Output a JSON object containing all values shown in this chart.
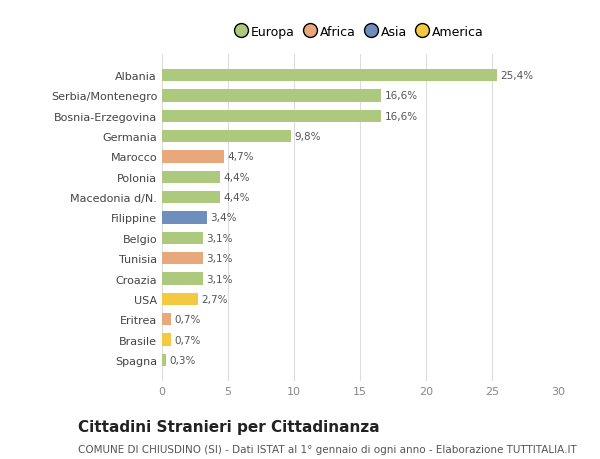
{
  "countries": [
    "Albania",
    "Serbia/Montenegro",
    "Bosnia-Erzegovina",
    "Germania",
    "Marocco",
    "Polonia",
    "Macedonia d/N.",
    "Filippine",
    "Belgio",
    "Tunisia",
    "Croazia",
    "USA",
    "Eritrea",
    "Brasile",
    "Spagna"
  ],
  "values": [
    25.4,
    16.6,
    16.6,
    9.8,
    4.7,
    4.4,
    4.4,
    3.4,
    3.1,
    3.1,
    3.1,
    2.7,
    0.7,
    0.7,
    0.3
  ],
  "labels": [
    "25,4%",
    "16,6%",
    "16,6%",
    "9,8%",
    "4,7%",
    "4,4%",
    "4,4%",
    "3,4%",
    "3,1%",
    "3,1%",
    "3,1%",
    "2,7%",
    "0,7%",
    "0,7%",
    "0,3%"
  ],
  "colors": [
    "#adc97e",
    "#adc97e",
    "#adc97e",
    "#adc97e",
    "#e8a87c",
    "#adc97e",
    "#adc97e",
    "#6e8fbe",
    "#adc97e",
    "#e8a87c",
    "#adc97e",
    "#f5c842",
    "#e8a87c",
    "#f5c842",
    "#adc97e"
  ],
  "legend_labels": [
    "Europa",
    "Africa",
    "Asia",
    "America"
  ],
  "legend_colors": [
    "#adc97e",
    "#e8a87c",
    "#6e8fbe",
    "#f5c842"
  ],
  "xlim": [
    0,
    30
  ],
  "xticks": [
    0,
    5,
    10,
    15,
    20,
    25,
    30
  ],
  "title": "Cittadini Stranieri per Cittadinanza",
  "subtitle": "COMUNE DI CHIUSDINO (SI) - Dati ISTAT al 1° gennaio di ogni anno - Elaborazione TUTTITALIA.IT",
  "bg_color": "#ffffff",
  "bar_height": 0.6,
  "title_fontsize": 11,
  "subtitle_fontsize": 7.5,
  "label_fontsize": 7.5,
  "tick_fontsize": 8,
  "legend_fontsize": 9
}
